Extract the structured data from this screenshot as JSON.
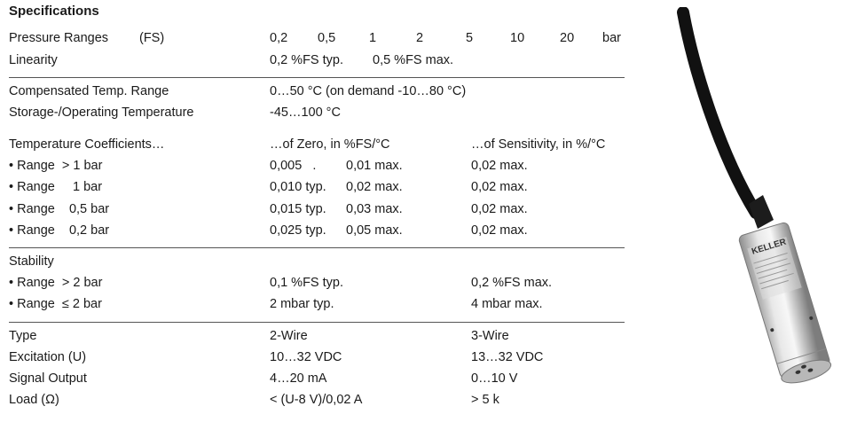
{
  "title": "Specifications",
  "pressure": {
    "label": "Pressure Ranges",
    "fs": "(FS)",
    "values": [
      "0,2",
      "0,5",
      "1",
      "2",
      "5",
      "10",
      "20"
    ],
    "unit": "bar"
  },
  "linearity": {
    "label": "Linearity",
    "typ": "0,2 %FS typ.",
    "max": "0,5 %FS max."
  },
  "comp_temp": {
    "label": "Compensated Temp. Range",
    "value": "0…50 °C (on demand -10…80 °C)"
  },
  "storage_temp": {
    "label": "Storage-/Operating Temperature",
    "value": "-45…100 °C"
  },
  "temp_coeff": {
    "label": "Temperature Coefficients…",
    "zero_header": "…of Zero, in %FS/°C",
    "sens_header": "…of Sensitivity, in %/°C",
    "rows": [
      {
        "label": "• Range  > 1 bar",
        "zero_typ": "0,005   .",
        "zero_max": "0,01 max.",
        "sens": "0,02 max."
      },
      {
        "label": "• Range     1 bar",
        "zero_typ": "0,010 typ.",
        "zero_max": "0,02 max.",
        "sens": "0,02 max."
      },
      {
        "label": "• Range    0,5 bar",
        "zero_typ": "0,015 typ.",
        "zero_max": "0,03 max.",
        "sens": "0,02 max."
      },
      {
        "label": "• Range    0,2 bar",
        "zero_typ": "0,025 typ.",
        "zero_max": "0,05 max.",
        "sens": "0,02 max."
      }
    ]
  },
  "stability": {
    "label": "Stability",
    "rows": [
      {
        "label": "• Range  > 2 bar",
        "a": "0,1 %FS typ.",
        "b": "0,2 %FS max."
      },
      {
        "label": "• Range  ≤ 2 bar",
        "a": "2 mbar typ.",
        "b": "4 mbar max."
      }
    ]
  },
  "electrical": [
    {
      "label": "Type",
      "a": "2-Wire",
      "b": "3-Wire"
    },
    {
      "label": "Excitation (U)",
      "a": "10…32 VDC",
      "b": "13…32 VDC"
    },
    {
      "label": "Signal Output",
      "a": "4…20 mA",
      "b": "0…10 V"
    },
    {
      "label": "Load (Ω)",
      "a": "< (U-8 V)/0,02 A",
      "b": "> 5 k"
    }
  ],
  "sensor": {
    "brand": "KELLER",
    "colors": {
      "body": "#c9c9c9",
      "cable": "#111111"
    }
  }
}
